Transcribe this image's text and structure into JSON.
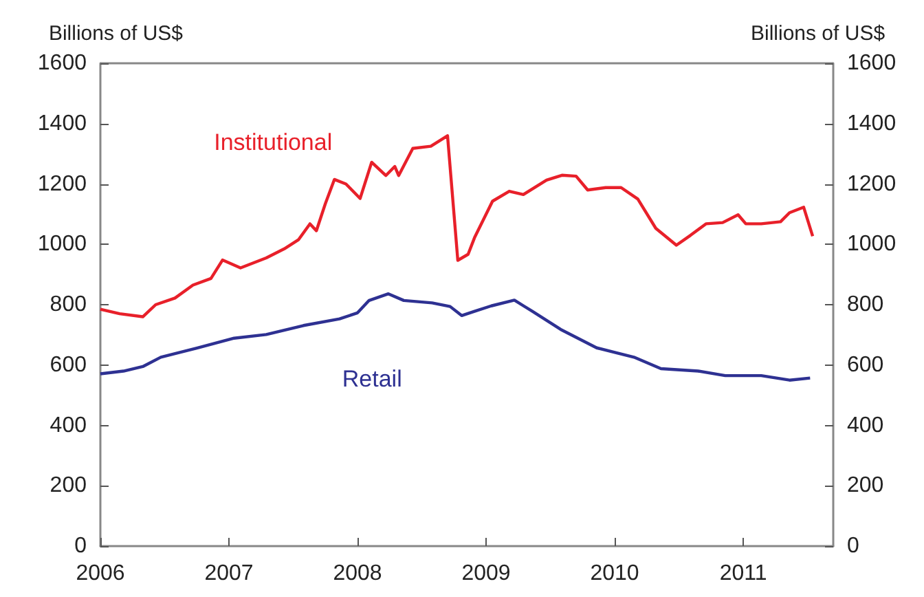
{
  "chart_data": {
    "type": "line",
    "ylabel": "Billions of US$",
    "y2label": "Billions of US$",
    "xlim": [
      2006,
      2011.7
    ],
    "xticks": [
      2006,
      2007,
      2008,
      2009,
      2010,
      2011
    ],
    "ylim": [
      0,
      1600
    ],
    "yticks": [
      0,
      200,
      400,
      600,
      800,
      1000,
      1200,
      1400,
      1600
    ],
    "y2lim": [
      0,
      1600
    ],
    "y2ticks": [
      0,
      200,
      400,
      600,
      800,
      1000,
      1200,
      1400,
      1600
    ],
    "grid": false,
    "legend": false,
    "marker": "none",
    "line_style": "solid",
    "series": [
      {
        "name": "Institutional",
        "color": "#e8202a",
        "x": [
          2006.0,
          2006.15,
          2006.33,
          2006.43,
          2006.58,
          2006.72,
          2006.86,
          2006.95,
          2007.09,
          2007.29,
          2007.43,
          2007.54,
          2007.63,
          2007.68,
          2007.75,
          2007.82,
          2007.91,
          2008.02,
          2008.11,
          2008.22,
          2008.29,
          2008.32,
          2008.43,
          2008.57,
          2008.7,
          2008.78,
          2008.86,
          2008.91,
          2009.05,
          2009.18,
          2009.29,
          2009.47,
          2009.59,
          2009.7,
          2009.79,
          2009.93,
          2010.05,
          2010.18,
          2010.32,
          2010.48,
          2010.59,
          2010.71,
          2010.84,
          2010.96,
          2011.02,
          2011.14,
          2011.29,
          2011.36,
          2011.47,
          2011.54
        ],
        "values": [
          785,
          770,
          760,
          800,
          822,
          865,
          887,
          948,
          922,
          955,
          985,
          1015,
          1068,
          1045,
          1135,
          1215,
          1200,
          1152,
          1272,
          1228,
          1258,
          1228,
          1318,
          1325,
          1360,
          947,
          967,
          1022,
          1143,
          1176,
          1165,
          1213,
          1229,
          1226,
          1180,
          1188,
          1188,
          1150,
          1053,
          997,
          1030,
          1068,
          1072,
          1098,
          1068,
          1068,
          1075,
          1105,
          1123,
          1027
        ]
      },
      {
        "name": "Retail",
        "color": "#2e3192",
        "x": [
          2006.0,
          2006.18,
          2006.33,
          2006.47,
          2006.75,
          2007.04,
          2007.29,
          2007.58,
          2007.86,
          2008.0,
          2008.09,
          2008.24,
          2008.36,
          2008.58,
          2008.72,
          2008.81,
          2008.91,
          2009.04,
          2009.22,
          2009.36,
          2009.58,
          2009.86,
          2010.15,
          2010.36,
          2010.65,
          2010.86,
          2011.14,
          2011.36,
          2011.52
        ],
        "values": [
          571,
          580,
          595,
          626,
          656,
          689,
          701,
          731,
          753,
          773,
          814,
          836,
          814,
          806,
          794,
          764,
          778,
          796,
          815,
          778,
          718,
          657,
          626,
          588,
          580,
          565,
          565,
          550,
          557
        ]
      }
    ]
  }
}
